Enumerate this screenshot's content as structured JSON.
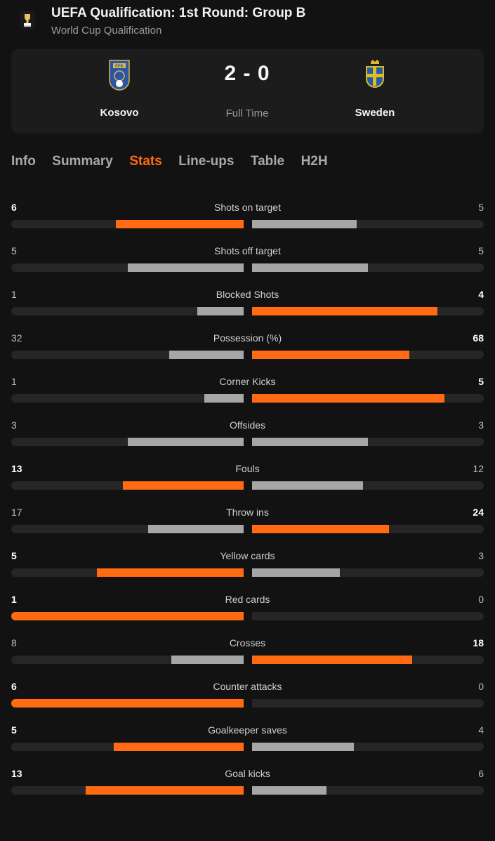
{
  "competition": {
    "title": "UEFA Qualification: 1st Round: Group B",
    "subtitle": "World Cup Qualification",
    "logo_icon": "world-cup-trophy-icon"
  },
  "match": {
    "home": {
      "name": "Kosovo",
      "crest_icon": "kosovo-ffk-crest-icon"
    },
    "away": {
      "name": "Sweden",
      "crest_icon": "sweden-crest-icon"
    },
    "score": "2 - 0",
    "status": "Full Time"
  },
  "tabs": [
    {
      "label": "Info",
      "active": false
    },
    {
      "label": "Summary",
      "active": false
    },
    {
      "label": "Stats",
      "active": true
    },
    {
      "label": "Line-ups",
      "active": false
    },
    {
      "label": "Table",
      "active": false
    },
    {
      "label": "H2H",
      "active": false
    }
  ],
  "colors": {
    "accent": "#ff6a13",
    "bar_neutral": "#a6a6a6",
    "track": "#262626",
    "background": "#121212",
    "card": "#1c1c1c"
  },
  "stats": [
    {
      "label": "Shots on target",
      "home": "6",
      "away": "5",
      "home_frac": 0.55,
      "away_frac": 0.45,
      "winner": "home"
    },
    {
      "label": "Shots off target",
      "home": "5",
      "away": "5",
      "home_frac": 0.5,
      "away_frac": 0.5,
      "winner": "none"
    },
    {
      "label": "Blocked Shots",
      "home": "1",
      "away": "4",
      "home_frac": 0.2,
      "away_frac": 0.8,
      "winner": "away"
    },
    {
      "label": "Possession (%)",
      "home": "32",
      "away": "68",
      "home_frac": 0.32,
      "away_frac": 0.68,
      "winner": "away"
    },
    {
      "label": "Corner Kicks",
      "home": "1",
      "away": "5",
      "home_frac": 0.17,
      "away_frac": 0.83,
      "winner": "away"
    },
    {
      "label": "Offsides",
      "home": "3",
      "away": "3",
      "home_frac": 0.5,
      "away_frac": 0.5,
      "winner": "none"
    },
    {
      "label": "Fouls",
      "home": "13",
      "away": "12",
      "home_frac": 0.52,
      "away_frac": 0.48,
      "winner": "home"
    },
    {
      "label": "Throw ins",
      "home": "17",
      "away": "24",
      "home_frac": 0.41,
      "away_frac": 0.59,
      "winner": "away"
    },
    {
      "label": "Yellow cards",
      "home": "5",
      "away": "3",
      "home_frac": 0.63,
      "away_frac": 0.38,
      "winner": "home"
    },
    {
      "label": "Red cards",
      "home": "1",
      "away": "0",
      "home_frac": 1.0,
      "away_frac": 0.0,
      "winner": "home"
    },
    {
      "label": "Crosses",
      "home": "8",
      "away": "18",
      "home_frac": 0.31,
      "away_frac": 0.69,
      "winner": "away"
    },
    {
      "label": "Counter attacks",
      "home": "6",
      "away": "0",
      "home_frac": 1.0,
      "away_frac": 0.0,
      "winner": "home"
    },
    {
      "label": "Goalkeeper saves",
      "home": "5",
      "away": "4",
      "home_frac": 0.56,
      "away_frac": 0.44,
      "winner": "home"
    },
    {
      "label": "Goal kicks",
      "home": "13",
      "away": "6",
      "home_frac": 0.68,
      "away_frac": 0.32,
      "winner": "home"
    }
  ]
}
